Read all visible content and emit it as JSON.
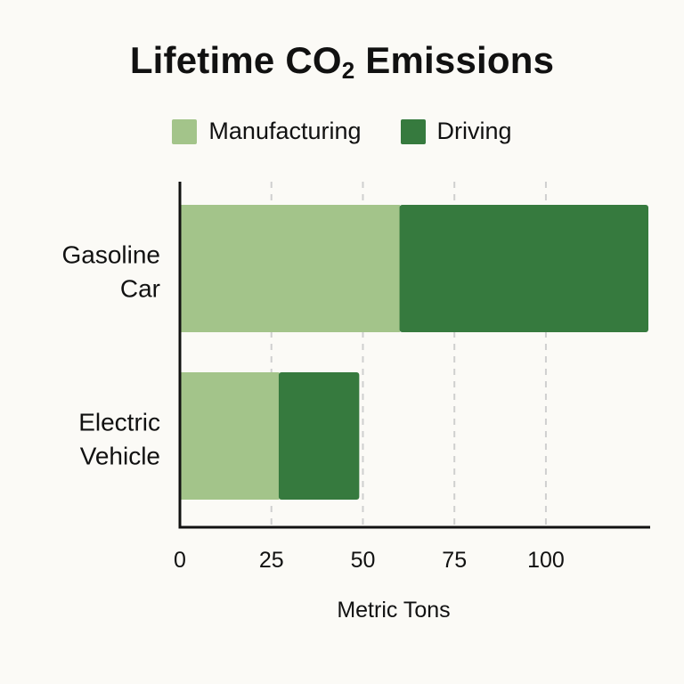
{
  "chart_data": {
    "type": "bar",
    "orientation": "horizontal",
    "stacked": true,
    "title_main": "Lifetime CO",
    "title_sub": "2",
    "title_rest": " Emissions",
    "categories": [
      {
        "line1": "Gasoline",
        "line2": "Car"
      },
      {
        "line1": "Electric",
        "line2": "Vehicle"
      }
    ],
    "series": [
      {
        "name": "Manufacturing",
        "color": "#a3c48a",
        "values": [
          60,
          27
        ]
      },
      {
        "name": "Driving",
        "color": "#367a3e",
        "values": [
          68,
          22
        ]
      }
    ],
    "x_ticks": [
      {
        "value": 0,
        "label": "0"
      },
      {
        "value": 25,
        "label": "25"
      },
      {
        "value": 50,
        "label": "50"
      },
      {
        "value": 75,
        "label": "75"
      },
      {
        "value": 100,
        "label": "100"
      }
    ],
    "xlabel": "Metric Tons",
    "xlim": [
      0,
      128
    ],
    "grid": "vertical-dashed",
    "legend_position": "top"
  }
}
